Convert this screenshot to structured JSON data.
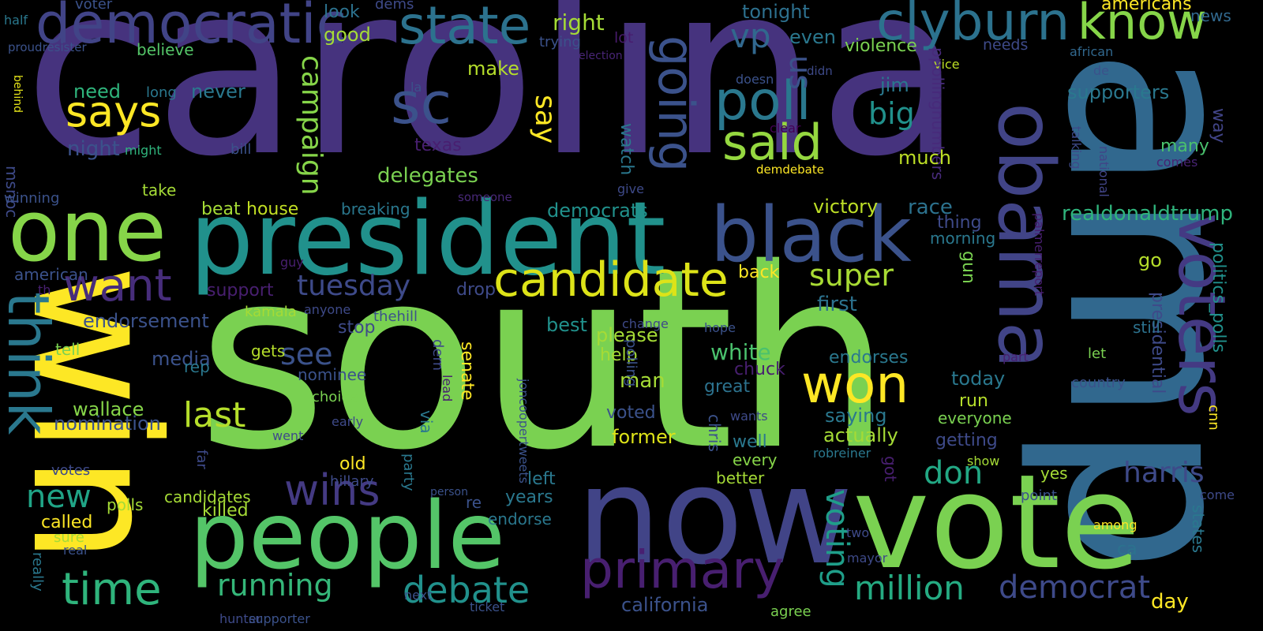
{
  "word_cloud": {
    "palette": "viridis",
    "background": "#000000",
    "words": [
      {
        "text": "carolina",
        "color": "#46337e"
      },
      {
        "text": "south",
        "color": "#7ad151"
      },
      {
        "text": "amp",
        "color": "#31688e"
      },
      {
        "text": "win",
        "color": "#fde725"
      },
      {
        "text": "vote",
        "color": "#7ad151"
      },
      {
        "text": "now",
        "color": "#414487"
      },
      {
        "text": "president",
        "color": "#21918c"
      },
      {
        "text": "people",
        "color": "#54c568"
      },
      {
        "text": "one",
        "color": "#86d549"
      },
      {
        "text": "black",
        "color": "#3b528b"
      },
      {
        "text": "obama",
        "color": "#414487"
      },
      {
        "text": "democratic",
        "color": "#414487"
      },
      {
        "text": "state",
        "color": "#2c728e"
      },
      {
        "text": "clyburn",
        "color": "#2c728e"
      },
      {
        "text": "know",
        "color": "#86d549"
      },
      {
        "text": "voters",
        "color": "#443a83"
      },
      {
        "text": "think",
        "color": "#2a788e"
      },
      {
        "text": "candidate",
        "color": "#dde318"
      },
      {
        "text": "primary",
        "color": "#481f70"
      },
      {
        "text": "sc",
        "color": "#3b528b"
      },
      {
        "text": "poll",
        "color": "#2a788e"
      },
      {
        "text": "said",
        "color": "#95d840"
      },
      {
        "text": "going",
        "color": "#3b528b"
      },
      {
        "text": "won",
        "color": "#fde725"
      },
      {
        "text": "says",
        "color": "#fde725"
      },
      {
        "text": "want",
        "color": "#472d7b"
      },
      {
        "text": "time",
        "color": "#2fb47c"
      },
      {
        "text": "wins",
        "color": "#443a83"
      },
      {
        "text": "last",
        "color": "#b5de2b"
      },
      {
        "text": "debate",
        "color": "#21918c"
      },
      {
        "text": "million",
        "color": "#25ab82"
      },
      {
        "text": "democrat",
        "color": "#3e4a89"
      },
      {
        "text": "running",
        "color": "#35b779"
      },
      {
        "text": "tuesday",
        "color": "#3e4a89"
      },
      {
        "text": "campaign",
        "color": "#86d549"
      },
      {
        "text": "super",
        "color": "#a8db34"
      },
      {
        "text": "harris",
        "color": "#3e4a89"
      },
      {
        "text": "new",
        "color": "#20a486"
      },
      {
        "text": "see",
        "color": "#3b528b"
      },
      {
        "text": "voting",
        "color": "#1f9e89"
      },
      {
        "text": "don",
        "color": "#22a884"
      },
      {
        "text": "say",
        "color": "#fde725"
      },
      {
        "text": "big",
        "color": "#21918c"
      },
      {
        "text": "vp",
        "color": "#31688e"
      },
      {
        "text": "us",
        "color": "#3b528b"
      },
      {
        "text": "right",
        "color": "#a5db36"
      },
      {
        "text": "tonight",
        "color": "#2d708e"
      },
      {
        "text": "americans",
        "color": "#fde725"
      },
      {
        "text": "news",
        "color": "#31688e"
      },
      {
        "text": "voter",
        "color": "#3b528b"
      },
      {
        "text": "dems",
        "color": "#3e4a89"
      },
      {
        "text": "half",
        "color": "#2a788e"
      },
      {
        "text": "proudresister",
        "color": "#3b528b"
      },
      {
        "text": "look",
        "color": "#2c728e"
      },
      {
        "text": "good",
        "color": "#a5db36"
      },
      {
        "text": "even",
        "color": "#2a788e"
      },
      {
        "text": "violence",
        "color": "#7ad151"
      },
      {
        "text": "needs",
        "color": "#3e4a89"
      },
      {
        "text": "african",
        "color": "#31688e"
      },
      {
        "text": "trying",
        "color": "#3b528b"
      },
      {
        "text": "lot",
        "color": "#481b6d"
      },
      {
        "text": "election",
        "color": "#482576"
      },
      {
        "text": "make",
        "color": "#b5de2b"
      },
      {
        "text": "jim",
        "color": "#2a788e"
      },
      {
        "text": "vice",
        "color": "#bddf26"
      },
      {
        "text": "de",
        "color": "#3b528b"
      },
      {
        "text": "didn",
        "color": "#3e4a89"
      },
      {
        "text": "supporters",
        "color": "#2a788e"
      },
      {
        "text": "believe",
        "color": "#54c568"
      },
      {
        "text": "ppollingnumbers",
        "color": "#472a7a"
      },
      {
        "text": "la",
        "color": "#3b528b"
      },
      {
        "text": "way",
        "color": "#414487"
      },
      {
        "text": "long",
        "color": "#2a788e"
      },
      {
        "text": "need",
        "color": "#2fb47c"
      },
      {
        "text": "never",
        "color": "#2a788e"
      },
      {
        "text": "doesn",
        "color": "#3b528b"
      },
      {
        "text": "behind",
        "color": "#e5e419"
      },
      {
        "text": "msnbc",
        "color": "#3e4a89"
      },
      {
        "text": "night",
        "color": "#3b528b"
      },
      {
        "text": "might",
        "color": "#2fb47c"
      },
      {
        "text": "bill",
        "color": "#3b528b"
      },
      {
        "text": "texas",
        "color": "#481f70"
      },
      {
        "text": "watch",
        "color": "#2a788e"
      },
      {
        "text": "clear",
        "color": "#440154"
      },
      {
        "text": "talking",
        "color": "#3e4a89"
      },
      {
        "text": "many",
        "color": "#4ac16d"
      },
      {
        "text": "much",
        "color": "#bddf26"
      },
      {
        "text": "national",
        "color": "#414487"
      },
      {
        "text": "comes",
        "color": "#482374"
      },
      {
        "text": "delegates",
        "color": "#7ad151"
      },
      {
        "text": "demdebate",
        "color": "#fde725"
      },
      {
        "text": "take",
        "color": "#a5db36"
      },
      {
        "text": "winning",
        "color": "#3b528b"
      },
      {
        "text": "someone",
        "color": "#482878"
      },
      {
        "text": "give",
        "color": "#3e4a89"
      },
      {
        "text": "beat",
        "color": "#a5db36"
      },
      {
        "text": "house",
        "color": "#c2df23"
      },
      {
        "text": "breaking",
        "color": "#2a788e"
      },
      {
        "text": "democrats",
        "color": "#21918c"
      },
      {
        "text": "victory",
        "color": "#bddf26"
      },
      {
        "text": "race",
        "color": "#2c728e"
      },
      {
        "text": "thing",
        "color": "#3e4a89"
      },
      {
        "text": "realdonaldtrump",
        "color": "#2fb47c"
      },
      {
        "text": "morning",
        "color": "#2a788e"
      },
      {
        "text": "palmerreport",
        "color": "#481f70"
      },
      {
        "text": "politics_polls",
        "color": "#21918c"
      },
      {
        "text": "go",
        "color": "#b5de2b"
      },
      {
        "text": "american",
        "color": "#3b528b"
      },
      {
        "text": "support",
        "color": "#481f70"
      },
      {
        "text": "drop",
        "color": "#3e4a89"
      },
      {
        "text": "guy",
        "color": "#481f70"
      },
      {
        "text": "th",
        "color": "#481f70"
      },
      {
        "text": "kamala",
        "color": "#a5db36"
      },
      {
        "text": "anyone",
        "color": "#3e4a89"
      },
      {
        "text": "thehill",
        "color": "#3b528b"
      },
      {
        "text": "first",
        "color": "#2c728e"
      },
      {
        "text": "gun",
        "color": "#7ad151"
      },
      {
        "text": "back",
        "color": "#fde725"
      },
      {
        "text": "endorsement",
        "color": "#3b528b"
      },
      {
        "text": "stop",
        "color": "#3e4a89"
      },
      {
        "text": "best",
        "color": "#21918c"
      },
      {
        "text": "change",
        "color": "#3e4a89"
      },
      {
        "text": "hope",
        "color": "#3b528b"
      },
      {
        "text": "presidential",
        "color": "#3e4a89"
      },
      {
        "text": "still",
        "color": "#2c728e"
      },
      {
        "text": "tell",
        "color": "#7ad151"
      },
      {
        "text": "media",
        "color": "#3b528b"
      },
      {
        "text": "please",
        "color": "#a5db36"
      },
      {
        "text": "help",
        "color": "#a5db36"
      },
      {
        "text": "white",
        "color": "#4ac16d"
      },
      {
        "text": "endorses",
        "color": "#2a788e"
      },
      {
        "text": "part",
        "color": "#481f70"
      },
      {
        "text": "let",
        "color": "#7ad151"
      },
      {
        "text": "cnn",
        "color": "#fde725"
      },
      {
        "text": "gets",
        "color": "#b5de2b"
      },
      {
        "text": "rep",
        "color": "#2a788e"
      },
      {
        "text": "nominee",
        "color": "#3b528b"
      },
      {
        "text": "chuck",
        "color": "#481f70"
      },
      {
        "text": "today",
        "color": "#2a788e"
      },
      {
        "text": "country",
        "color": "#3b528b"
      },
      {
        "text": "man",
        "color": "#a5db36"
      },
      {
        "text": "great",
        "color": "#2c728e"
      },
      {
        "text": "run",
        "color": "#b5de2b"
      },
      {
        "text": "choice",
        "color": "#7ad151"
      },
      {
        "text": "dem",
        "color": "#3e4a89"
      },
      {
        "text": "polling",
        "color": "#3b528b"
      },
      {
        "text": "wallace",
        "color": "#86d549"
      },
      {
        "text": "senate",
        "color": "#fde725"
      },
      {
        "text": "lead",
        "color": "#481f70"
      },
      {
        "text": "chris",
        "color": "#3b528b"
      },
      {
        "text": "wants",
        "color": "#3e4a89"
      },
      {
        "text": "saying",
        "color": "#2a788e"
      },
      {
        "text": "everyone",
        "color": "#7ad151"
      },
      {
        "text": "nomination",
        "color": "#3b528b"
      },
      {
        "text": "early",
        "color": "#3e4a89"
      },
      {
        "text": "via",
        "color": "#2a788e"
      },
      {
        "text": "voted",
        "color": "#3b528b"
      },
      {
        "text": "actually",
        "color": "#a5db36"
      },
      {
        "text": "went",
        "color": "#3e4a89"
      },
      {
        "text": "joncoopertweets",
        "color": "#3b528b"
      },
      {
        "text": "former",
        "color": "#dde318"
      },
      {
        "text": "well",
        "color": "#2a788e"
      },
      {
        "text": "getting",
        "color": "#3e4a89"
      },
      {
        "text": "every",
        "color": "#86d549"
      },
      {
        "text": "robreiner",
        "color": "#2a788e"
      },
      {
        "text": "show",
        "color": "#a5db36"
      },
      {
        "text": "votes",
        "color": "#3e4a89"
      },
      {
        "text": "far",
        "color": "#3e4a89"
      },
      {
        "text": "hillary",
        "color": "#3e4a89"
      },
      {
        "text": "old",
        "color": "#fde725"
      },
      {
        "text": "got",
        "color": "#481f70"
      },
      {
        "text": "better",
        "color": "#a5db36"
      },
      {
        "text": "yes",
        "color": "#a5db36"
      },
      {
        "text": "party",
        "color": "#2a788e"
      },
      {
        "text": "person",
        "color": "#3b528b"
      },
      {
        "text": "polls",
        "color": "#a5db36"
      },
      {
        "text": "candidates",
        "color": "#a5db36"
      },
      {
        "text": "left",
        "color": "#2a788e"
      },
      {
        "text": "point",
        "color": "#3b528b"
      },
      {
        "text": "come",
        "color": "#3e4a89"
      },
      {
        "text": "years",
        "color": "#2a788e"
      },
      {
        "text": "killed",
        "color": "#a5db36"
      },
      {
        "text": "re",
        "color": "#3b528b"
      },
      {
        "text": "endorse",
        "color": "#2a788e"
      },
      {
        "text": "states",
        "color": "#2a788e"
      },
      {
        "text": "called",
        "color": "#fde725"
      },
      {
        "text": "among",
        "color": "#fde725"
      },
      {
        "text": "sure",
        "color": "#a5db36"
      },
      {
        "text": "two",
        "color": "#3e4a89"
      },
      {
        "text": "ca",
        "color": "#2c728e"
      },
      {
        "text": "real",
        "color": "#3b528b"
      },
      {
        "text": "really",
        "color": "#2a788e"
      },
      {
        "text": "mayor",
        "color": "#3e4a89"
      },
      {
        "text": "next",
        "color": "#3b528b"
      },
      {
        "text": "ticket",
        "color": "#3b528b"
      },
      {
        "text": "california",
        "color": "#3b528b"
      },
      {
        "text": "agree",
        "color": "#7ad151"
      },
      {
        "text": "day",
        "color": "#fde725"
      },
      {
        "text": "hunter",
        "color": "#3e4a89"
      },
      {
        "text": "supporter",
        "color": "#3b528b"
      }
    ]
  }
}
